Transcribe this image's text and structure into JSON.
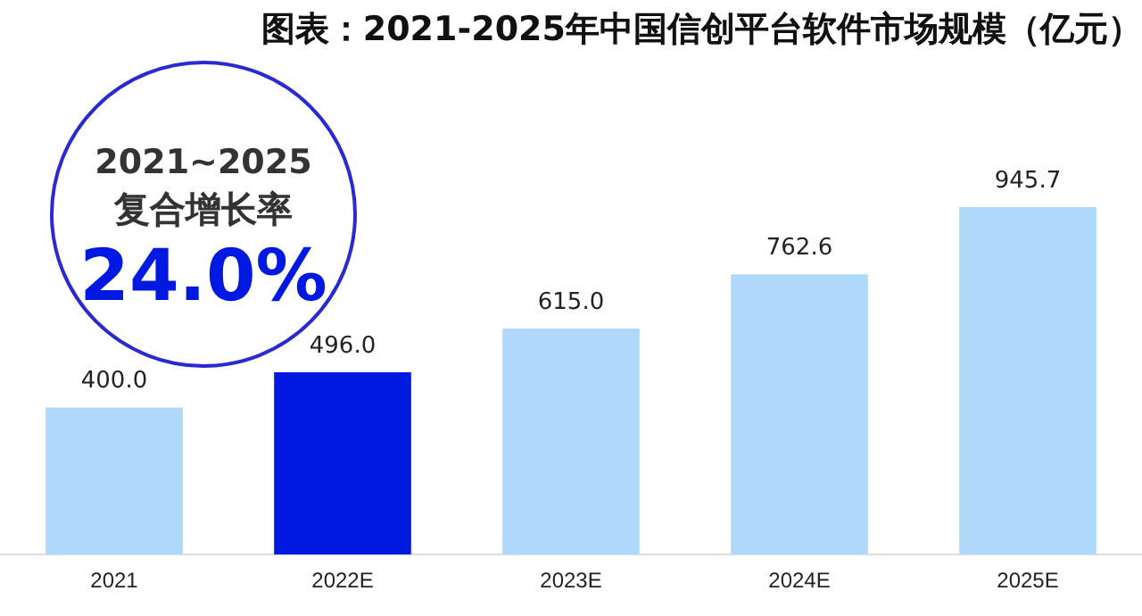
{
  "chart_data": {
    "type": "bar",
    "title": "图表：2021-2025年中国信创平台软件市场规模（亿元）",
    "categories": [
      "2021",
      "2022E",
      "2023E",
      "2024E",
      "2025E"
    ],
    "values": [
      400.0,
      496.0,
      615.0,
      762.6,
      945.7
    ],
    "colors": [
      "#b0d8fa",
      "#0019e0",
      "#b0d8fa",
      "#b0d8fa",
      "#b0d8fa"
    ],
    "value_labels": [
      "400.0",
      "496.0",
      "615.0",
      "762.6",
      "945.7"
    ],
    "grid": false,
    "legend": false,
    "tick_labels": "x",
    "annotations": [
      "2021~2025",
      "复合增长率",
      "24.0%"
    ]
  }
}
